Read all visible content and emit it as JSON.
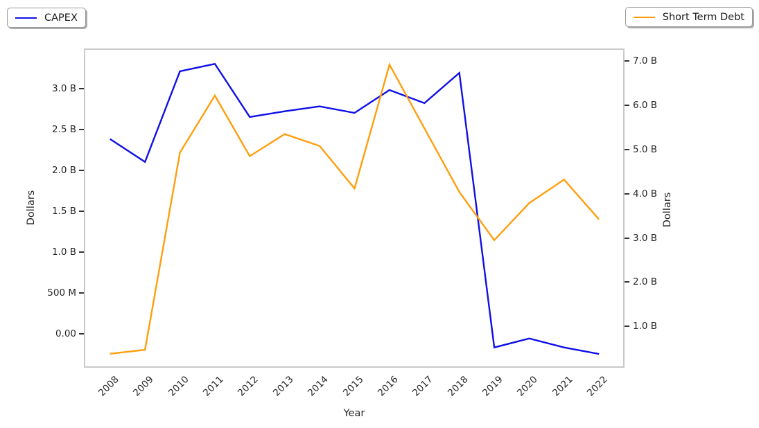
{
  "legend_left": {
    "label": "CAPEX",
    "color": "#0f0fe8"
  },
  "legend_right": {
    "label": "Short Term Debt",
    "color": "#ff9e0d"
  },
  "chart_data": {
    "type": "line",
    "title": "",
    "xlabel": "Year",
    "ylabel_left": "Dollars",
    "ylabel_right": "Dollars",
    "units": "USD (M = millions, B = billions)",
    "grid": false,
    "legend_position": "CAPEX top-left, Short Term Debt top-right",
    "x": [
      2008,
      2009,
      2010,
      2011,
      2012,
      2013,
      2014,
      2015,
      2016,
      2017,
      2018,
      2019,
      2020,
      2021,
      2022
    ],
    "series": [
      {
        "name": "CAPEX",
        "axis": "left",
        "color": "#0f0fe8",
        "values_billions": [
          2.38,
          2.1,
          3.21,
          3.3,
          2.65,
          2.72,
          2.78,
          2.7,
          2.98,
          2.82,
          3.19,
          -0.17,
          -0.06,
          -0.17,
          -0.25
        ]
      },
      {
        "name": "Short Term Debt",
        "axis": "right",
        "color": "#ff9e0d",
        "values_billions": [
          0.38,
          0.47,
          4.93,
          6.22,
          4.85,
          5.35,
          5.08,
          4.12,
          6.92,
          5.48,
          4.04,
          2.95,
          3.79,
          4.32,
          3.42
        ]
      }
    ],
    "left_axis": {
      "ticks": [
        {
          "label": "3.0 B",
          "value": 3.0
        },
        {
          "label": "2.5 B",
          "value": 2.5
        },
        {
          "label": "2.0 B",
          "value": 2.0
        },
        {
          "label": "1.5 B",
          "value": 1.5
        },
        {
          "label": "1.0 B",
          "value": 1.0
        },
        {
          "label": "500 M",
          "value": 0.5
        },
        {
          "label": "0.00",
          "value": 0.0
        }
      ],
      "range_billions": [
        -0.41,
        3.48
      ]
    },
    "right_axis": {
      "ticks": [
        {
          "label": "7.0 B",
          "value": 7.0
        },
        {
          "label": "6.0 B",
          "value": 6.0
        },
        {
          "label": "5.0 B",
          "value": 5.0
        },
        {
          "label": "4.0 B",
          "value": 4.0
        },
        {
          "label": "3.0 B",
          "value": 3.0
        },
        {
          "label": "2.0 B",
          "value": 2.0
        },
        {
          "label": "1.0 B",
          "value": 1.0
        }
      ],
      "range_billions": [
        0.08,
        7.27
      ]
    },
    "x_range_index": [
      -0.73,
      14.69
    ]
  }
}
